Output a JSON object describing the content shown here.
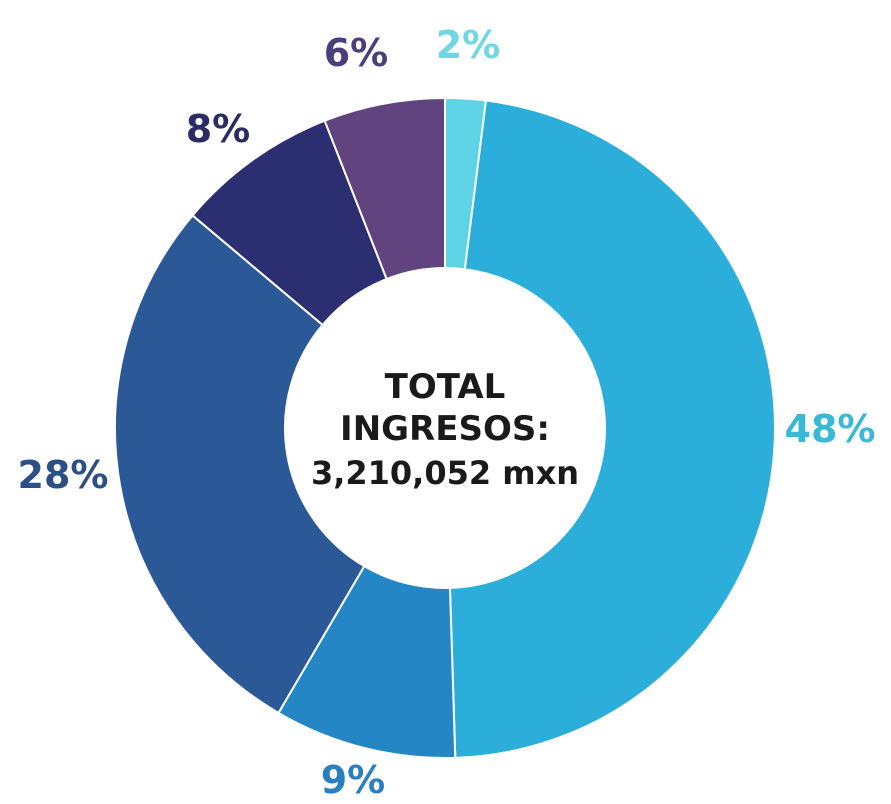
{
  "chart_data": {
    "type": "pie",
    "variant": "donut",
    "center_label": {
      "line1": "TOTAL",
      "line2": "INGRESOS:",
      "line3": "3,210,052 mxn"
    },
    "slices": [
      {
        "value": 2,
        "label": "2%",
        "color": "#5fd3e6",
        "label_color": "#6fd6e3"
      },
      {
        "value": 48,
        "label": "48%",
        "color": "#2baed9",
        "label_color": "#39b9d6"
      },
      {
        "value": 9,
        "label": "9%",
        "color": "#2486c4",
        "label_color": "#2a7fbf"
      },
      {
        "value": 28,
        "label": "28%",
        "color": "#2b5896",
        "label_color": "#2d4f87"
      },
      {
        "value": 8,
        "label": "8%",
        "color": "#2b2f72",
        "label_color": "#2a2c66"
      },
      {
        "value": 6,
        "label": "6%",
        "color": "#60437f",
        "label_color": "#4a3f7a"
      }
    ]
  }
}
